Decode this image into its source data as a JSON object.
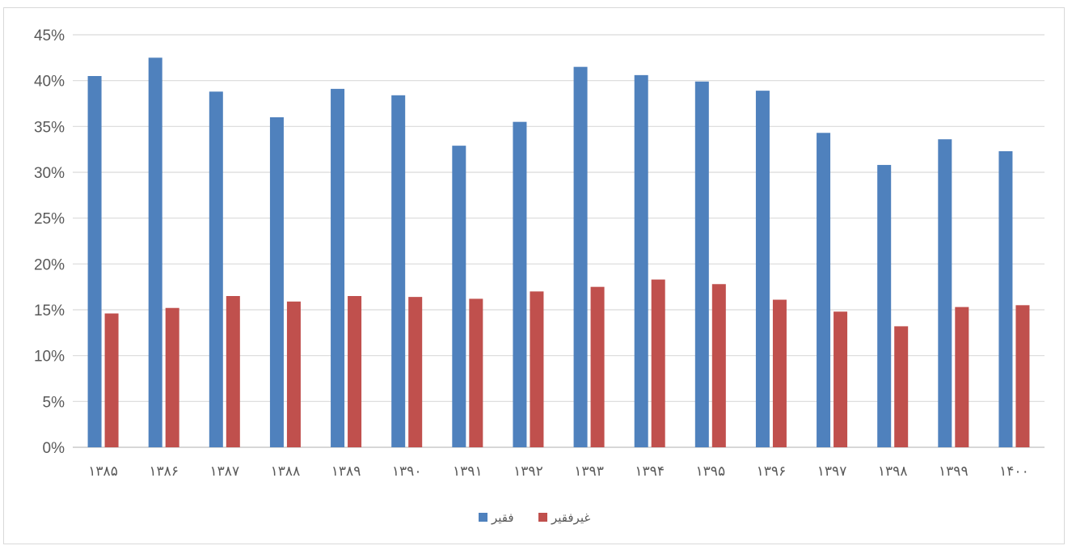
{
  "chart_data": {
    "type": "bar",
    "categories": [
      "۱۳۸۵",
      "۱۳۸۶",
      "۱۳۸۷",
      "۱۳۸۸",
      "۱۳۸۹",
      "۱۳۹۰",
      "۱۳۹۱",
      "۱۳۹۲",
      "۱۳۹۳",
      "۱۳۹۴",
      "۱۳۹۵",
      "۱۳۹۶",
      "۱۳۹۷",
      "۱۳۹۸",
      "۱۳۹۹",
      "۱۴۰۰"
    ],
    "series": [
      {
        "name": "فقیر",
        "color": "#4f81bd",
        "values": [
          40.5,
          42.5,
          38.8,
          36.0,
          39.1,
          38.4,
          32.9,
          35.5,
          41.5,
          40.6,
          39.9,
          38.9,
          34.3,
          30.8,
          33.6,
          32.3
        ]
      },
      {
        "name": "غیرفقیر",
        "color": "#c0504d",
        "values": [
          14.6,
          15.2,
          16.5,
          15.9,
          16.5,
          16.4,
          16.2,
          17.0,
          17.5,
          18.3,
          17.8,
          16.1,
          14.8,
          13.2,
          15.3,
          15.5
        ]
      }
    ],
    "ylim": [
      0,
      45
    ],
    "yticks": [
      "0%",
      "5%",
      "10%",
      "15%",
      "20%",
      "25%",
      "30%",
      "35%",
      "40%",
      "45%"
    ],
    "ytick_values": [
      0,
      5,
      10,
      15,
      20,
      25,
      30,
      35,
      40,
      45
    ],
    "grid": true,
    "legend_position": "bottom",
    "xlabel": "",
    "ylabel": "",
    "title": ""
  }
}
